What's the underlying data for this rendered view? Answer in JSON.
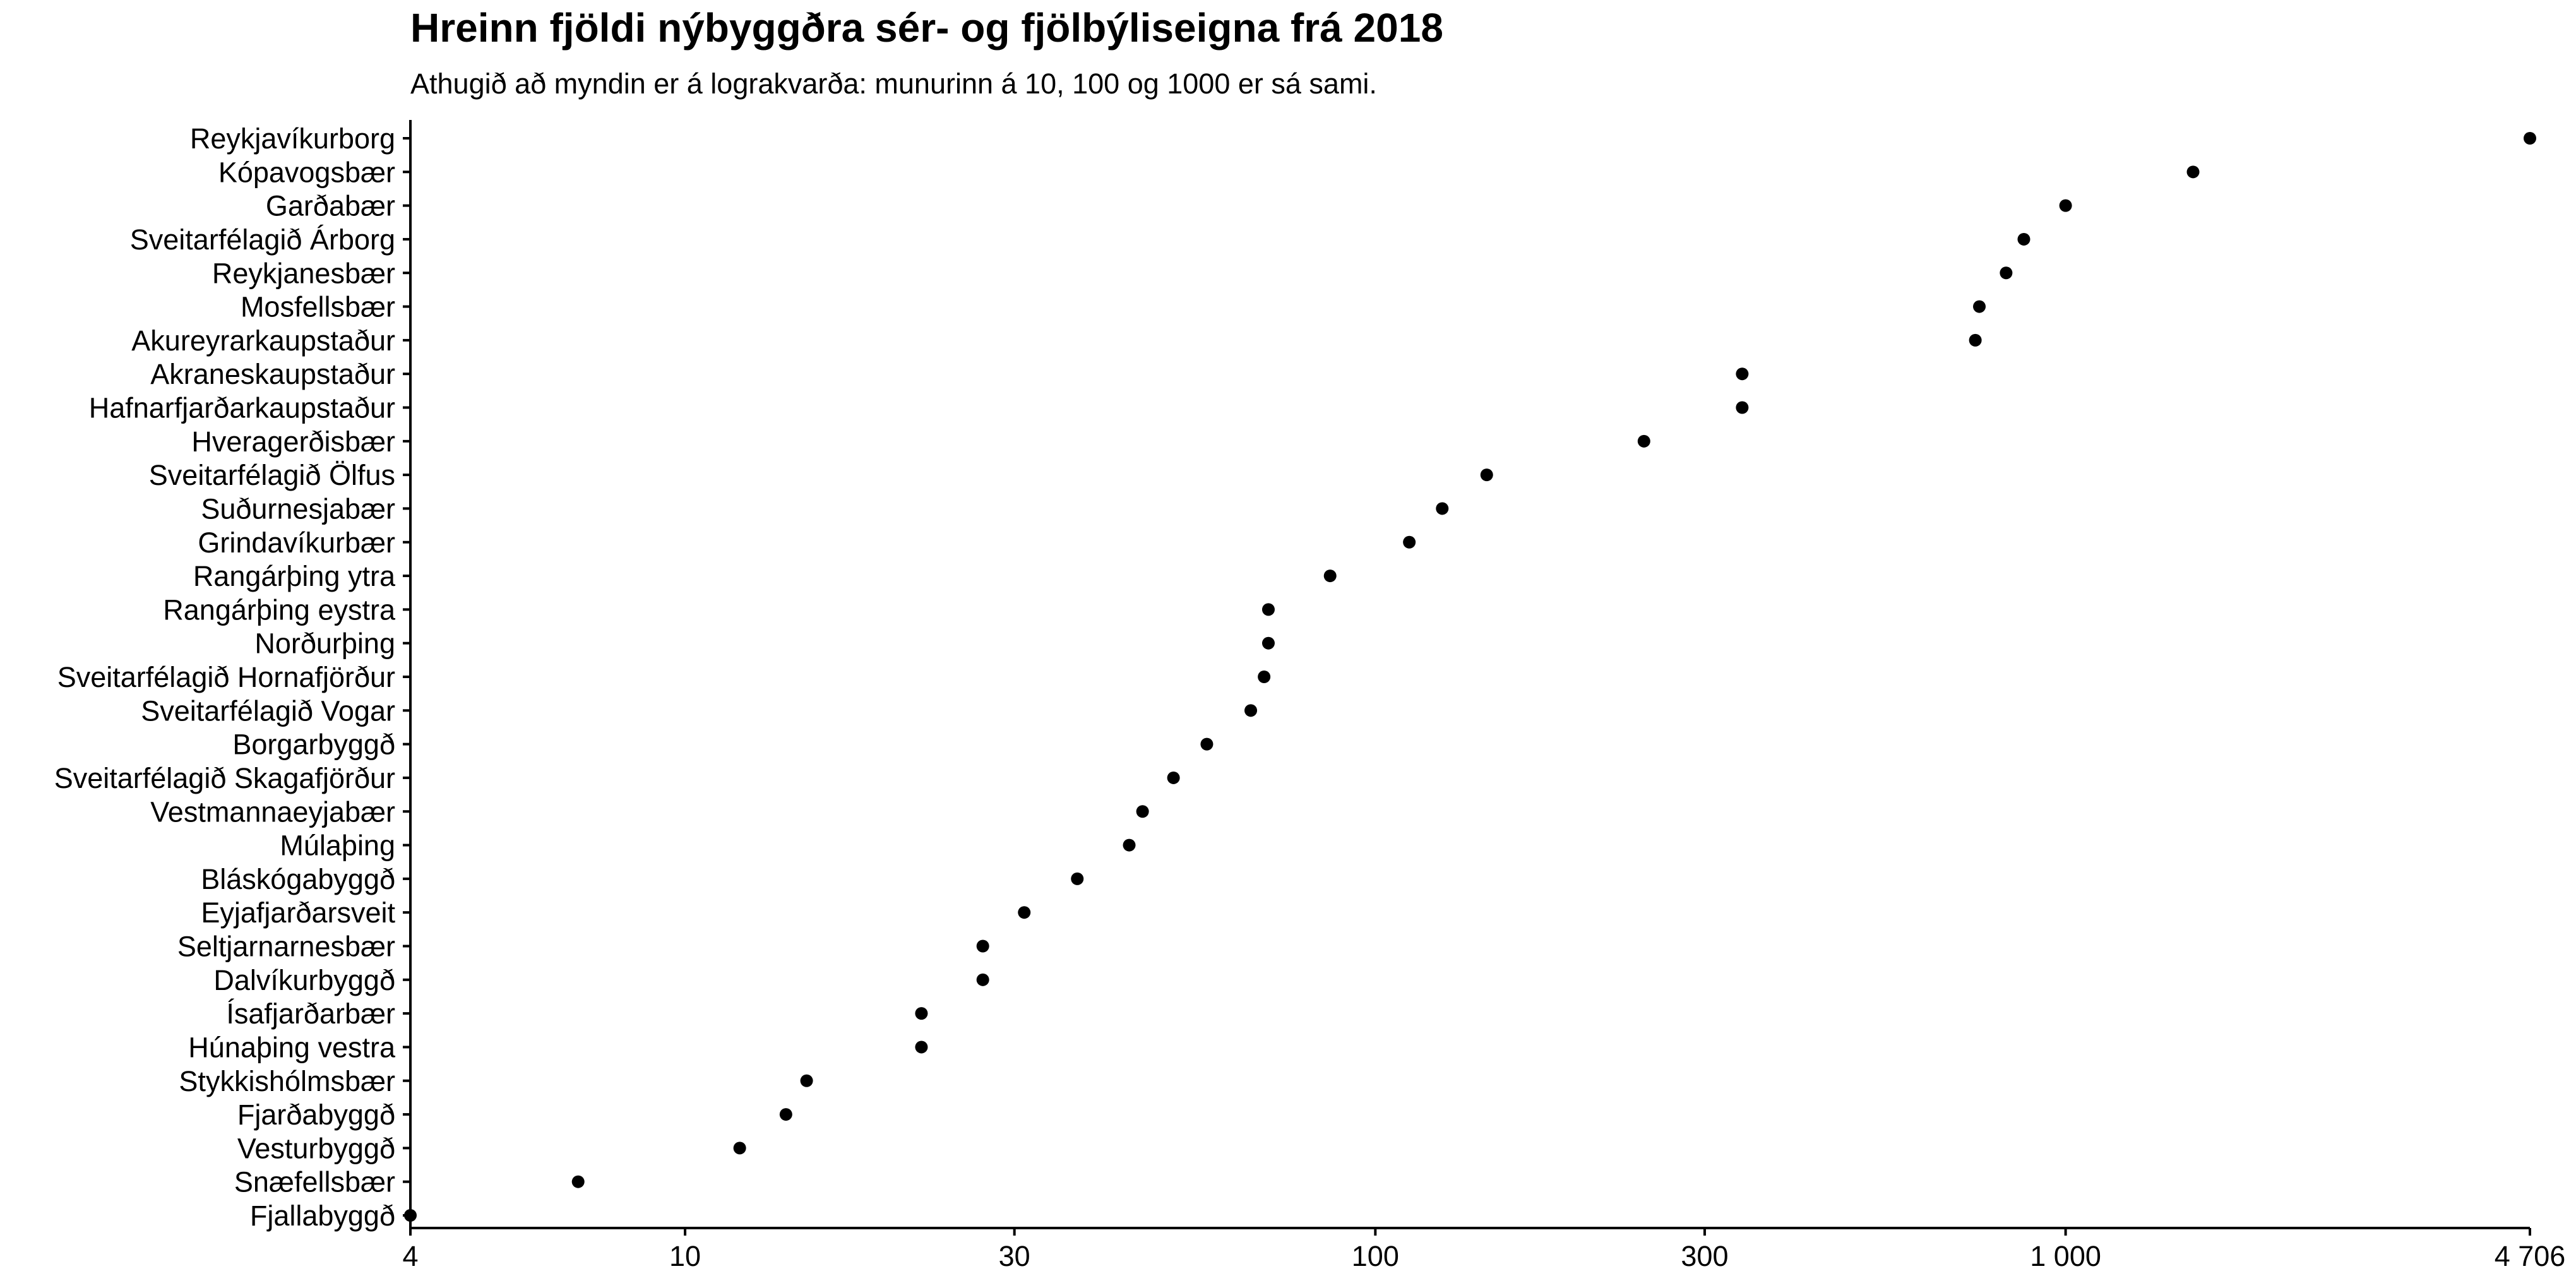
{
  "chart_data": {
    "type": "scatter",
    "title": "Hreinn fjöldi nýbyggðra sér- og fjölbýliseigna frá 2018",
    "subtitle": "Athugið að myndin er á lograkvarða: munurinn á 10, 100 og 1000 er sá sami.",
    "x_scale": "log",
    "xlim": [
      4,
      4706
    ],
    "x_ticks": [
      {
        "value": 4,
        "label": "4"
      },
      {
        "value": 10,
        "label": "10"
      },
      {
        "value": 30,
        "label": "30"
      },
      {
        "value": 100,
        "label": "100"
      },
      {
        "value": 300,
        "label": "300"
      },
      {
        "value": 1000,
        "label": "1 000"
      },
      {
        "value": 4706,
        "label": "4 706"
      }
    ],
    "grid": false,
    "categories": [
      "Reykjavíkurborg",
      "Kópavogsbær",
      "Garðabær",
      "Sveitarfélagið Árborg",
      "Reykjanesbær",
      "Mosfellsbær",
      "Akureyrarkaupstaður",
      "Akraneskaupstaður",
      "Hafnarfjarðarkaupstaður",
      "Hveragerðisbær",
      "Sveitarfélagið Ölfus",
      "Suðurnesjabær",
      "Grindavíkurbær",
      "Rangárþing ytra",
      "Rangárþing eystra",
      "Norðurþing",
      "Sveitarfélagið Hornafjörður",
      "Sveitarfélagið Vogar",
      "Borgarbyggð",
      "Sveitarfélagið Skagafjörður",
      "Vestmannaeyjabær",
      "Múlaþing",
      "Bláskógabyggð",
      "Eyjafjarðarsveit",
      "Seltjarnarnesbær",
      "Dalvíkurbyggð",
      "Ísafjarðarbær",
      "Húnaþing vestra",
      "Stykkishólmsbær",
      "Fjarðabyggð",
      "Vesturbyggð",
      "Snæfellsbær",
      "Fjallabyggð"
    ],
    "values": [
      4706,
      1530,
      1000,
      870,
      820,
      750,
      740,
      340,
      340,
      245,
      145,
      125,
      112,
      86,
      70,
      70,
      69,
      66,
      57,
      51,
      46,
      44,
      37,
      31,
      27,
      27,
      22,
      22,
      15,
      14,
      12,
      7,
      4
    ]
  }
}
